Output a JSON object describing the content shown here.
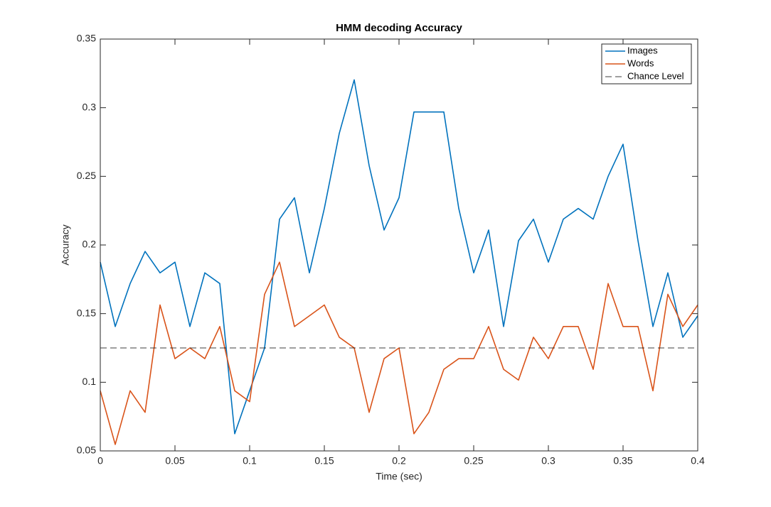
{
  "chart_data": {
    "type": "line",
    "title": "HMM decoding Accuracy",
    "xlabel": "Time (sec)",
    "ylabel": "Accuracy",
    "x": [
      0,
      0.01,
      0.02,
      0.03,
      0.04,
      0.05,
      0.06,
      0.07,
      0.08,
      0.09,
      0.1,
      0.11,
      0.12,
      0.13,
      0.14,
      0.15,
      0.16,
      0.17,
      0.18,
      0.19,
      0.2,
      0.21,
      0.22,
      0.23,
      0.24,
      0.25,
      0.26,
      0.27,
      0.28,
      0.29,
      0.3,
      0.31,
      0.32,
      0.33,
      0.34,
      0.35,
      0.36,
      0.37,
      0.38,
      0.39,
      0.4
    ],
    "series": [
      {
        "name": "Images",
        "color": "#0072bd",
        "values": [
          0.1875,
          0.1406,
          0.1719,
          0.1953,
          0.1797,
          0.1875,
          0.1406,
          0.1797,
          0.1719,
          0.0625,
          0.0938,
          0.125,
          0.2188,
          0.2344,
          0.1797,
          0.2266,
          0.2813,
          0.3203,
          0.2578,
          0.2109,
          0.2344,
          0.2969,
          0.2969,
          0.2969,
          0.2266,
          0.1797,
          0.2109,
          0.1406,
          0.2031,
          0.2188,
          0.1875,
          0.2188,
          0.2266,
          0.2188,
          0.25,
          0.2734,
          0.2031,
          0.1406,
          0.1797,
          0.1328,
          0.1484
        ]
      },
      {
        "name": "Words",
        "color": "#d95319",
        "values": [
          0.0938,
          0.0547,
          0.0938,
          0.0781,
          0.1563,
          0.1172,
          0.125,
          0.1172,
          0.1406,
          0.0938,
          0.0859,
          0.1641,
          0.1875,
          0.1406,
          0.1484,
          0.1563,
          0.1328,
          0.125,
          0.0781,
          0.1172,
          0.125,
          0.0625,
          0.0781,
          0.1094,
          0.1172,
          0.1172,
          0.1406,
          0.1094,
          0.1016,
          0.1328,
          0.1172,
          0.1406,
          0.1406,
          0.1094,
          0.1719,
          0.1406,
          0.1406,
          0.0938,
          0.1641,
          0.1406,
          0.1563
        ]
      }
    ],
    "reference_line": {
      "name": "Chance Level",
      "value": 0.125,
      "color": "#000000",
      "style": "dashed"
    },
    "xlim": [
      0,
      0.4
    ],
    "xticks": [
      0,
      0.05,
      0.1,
      0.15,
      0.2,
      0.25,
      0.3,
      0.35,
      0.4
    ],
    "ylim": [
      0.05,
      0.35
    ],
    "yticks": [
      0.05,
      0.1,
      0.15,
      0.2,
      0.25,
      0.3,
      0.35
    ],
    "grid": false,
    "legend_position": "northeast"
  }
}
